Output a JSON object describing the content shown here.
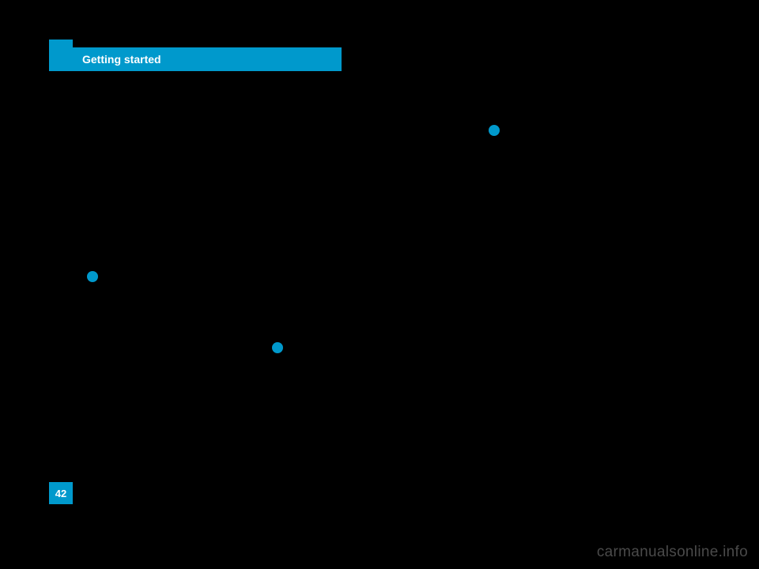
{
  "header": {
    "title": "Getting started"
  },
  "page": {
    "number": "42"
  },
  "watermark": {
    "text": "carmanualsonline.info"
  },
  "dots": {
    "color": "#0099cc"
  },
  "colors": {
    "background": "#000000",
    "accent": "#0099cc",
    "header_text": "#ffffff",
    "watermark_text": "#4a4a4a"
  }
}
